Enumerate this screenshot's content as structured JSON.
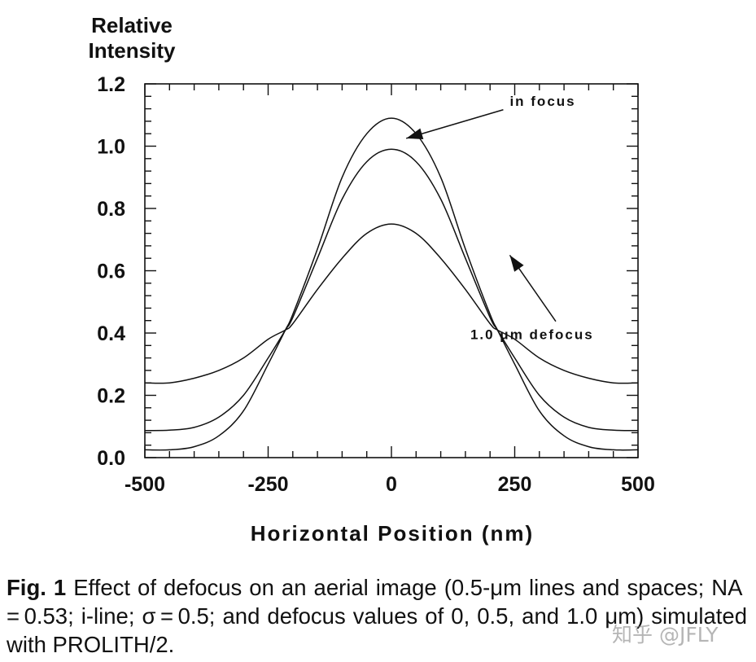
{
  "chart_data": {
    "type": "line",
    "title": "",
    "ylabel": [
      "Relative",
      "Intensity"
    ],
    "xlabel": "Horizontal Position (nm)",
    "xlim": [
      -500,
      500
    ],
    "ylim": [
      0.0,
      1.2
    ],
    "xticks": [
      "-500",
      "-250",
      "0",
      "250",
      "500"
    ],
    "yticks": [
      "0.0",
      "0.2",
      "0.4",
      "0.6",
      "0.8",
      "1.0",
      "1.2"
    ],
    "grid": false,
    "legend": "none",
    "series": [
      {
        "x": [
          -500,
          -450,
          -400,
          -350,
          -300,
          -250,
          -215,
          -200,
          -150,
          -100,
          -50,
          0,
          50,
          100,
          150,
          200,
          215,
          250,
          300,
          350,
          400,
          450,
          500
        ],
        "values": [
          0.025,
          0.025,
          0.035,
          0.07,
          0.15,
          0.3,
          0.41,
          0.46,
          0.67,
          0.9,
          1.04,
          1.09,
          1.04,
          0.9,
          0.67,
          0.46,
          0.41,
          0.3,
          0.15,
          0.07,
          0.035,
          0.025,
          0.025
        ]
      },
      {
        "x": [
          -500,
          -450,
          -400,
          -350,
          -300,
          -250,
          -215,
          -200,
          -150,
          -100,
          -50,
          0,
          50,
          100,
          150,
          200,
          215,
          250,
          300,
          350,
          400,
          450,
          500
        ],
        "values": [
          0.087,
          0.088,
          0.097,
          0.13,
          0.2,
          0.32,
          0.41,
          0.45,
          0.64,
          0.83,
          0.95,
          0.99,
          0.95,
          0.83,
          0.64,
          0.45,
          0.41,
          0.32,
          0.2,
          0.13,
          0.097,
          0.088,
          0.087
        ]
      },
      {
        "x": [
          -500,
          -450,
          -400,
          -350,
          -300,
          -250,
          -215,
          -200,
          -150,
          -100,
          -50,
          0,
          50,
          100,
          150,
          200,
          215,
          250,
          300,
          350,
          400,
          450,
          500
        ],
        "values": [
          0.24,
          0.24,
          0.255,
          0.28,
          0.32,
          0.38,
          0.41,
          0.43,
          0.54,
          0.64,
          0.72,
          0.75,
          0.72,
          0.64,
          0.54,
          0.43,
          0.41,
          0.38,
          0.32,
          0.28,
          0.255,
          0.24,
          0.24
        ]
      }
    ],
    "annotations": [
      {
        "text": "in focus",
        "x": 240,
        "y": 1.13,
        "target_x": 30,
        "target_y": 1.025
      },
      {
        "text": "1.0 μm defocus",
        "x": 160,
        "y": 0.38,
        "target_x": 240,
        "target_y": 0.65
      }
    ]
  },
  "caption": {
    "fig_label": "Fig. 1",
    "text": " Effect of defocus on an aerial image (0.5-μm lines and spaces; NA = 0.53; i-line; σ = 0.5; and defocus values of 0, 0.5, and 1.0 μm) simulated with PROLITH/2."
  },
  "watermark": "知乎 @JFLY"
}
